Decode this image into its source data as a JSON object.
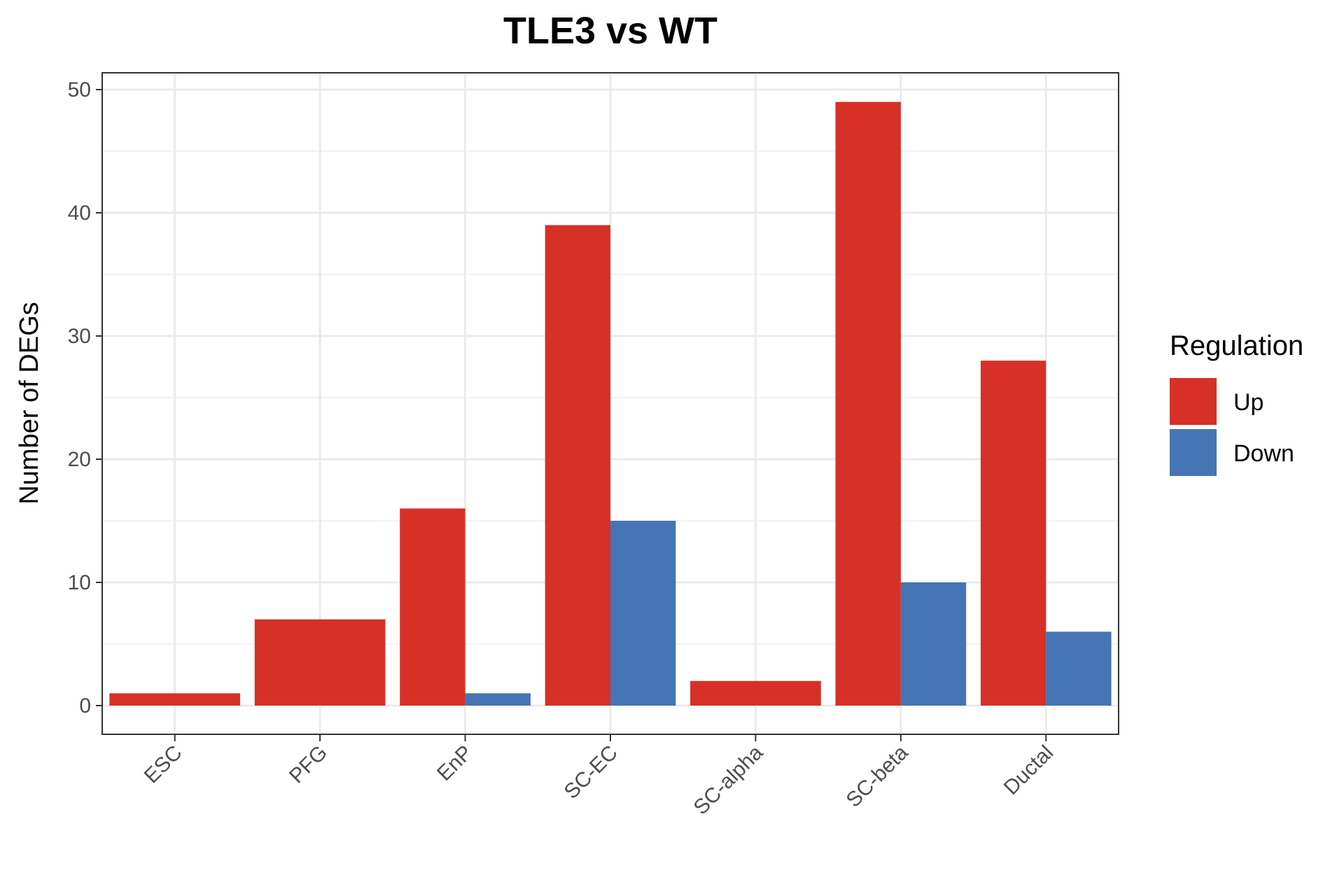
{
  "chart_data": {
    "type": "bar",
    "title": "TLE3 vs WT",
    "xlabel": "",
    "ylabel": "Number of DEGs",
    "categories": [
      "ESC",
      "PFG",
      "EnP",
      "SC-EC",
      "SC-alpha",
      "SC-beta",
      "Ductal"
    ],
    "series": [
      {
        "name": "Up",
        "color": "#d73027",
        "values": [
          1,
          7,
          16,
          39,
          2,
          49,
          28
        ]
      },
      {
        "name": "Down",
        "color": "#4575b4",
        "values": [
          0,
          0,
          1,
          15,
          0,
          10,
          6
        ]
      }
    ],
    "ylim": [
      0,
      50
    ],
    "yticks": [
      0,
      10,
      20,
      30,
      40,
      50
    ],
    "grid": true,
    "legend": {
      "title": "Regulation",
      "position": "right"
    }
  }
}
